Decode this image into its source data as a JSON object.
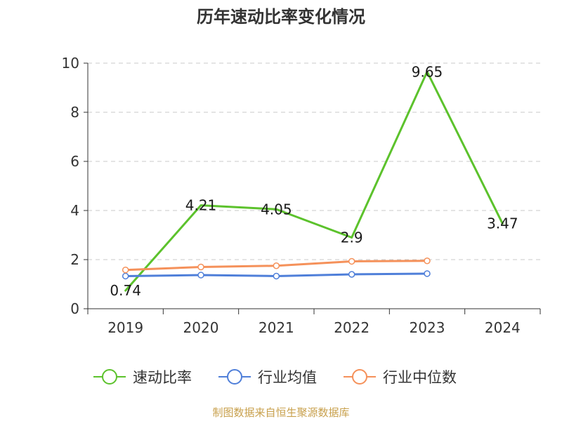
{
  "title": "历年速动比率变化情况",
  "source_note": "制图数据来自恒生聚源数据库",
  "colors": {
    "title": "#333333",
    "axis": "#333333",
    "grid": "#c8c8c8",
    "tick_text": "#333333",
    "source": "#c8a04c"
  },
  "chart_data": {
    "type": "line",
    "title": "历年速动比率变化情况",
    "x": [
      "2019",
      "2020",
      "2021",
      "2022",
      "2023",
      "2024"
    ],
    "ylim": [
      0,
      10
    ],
    "yticks": [
      0,
      2,
      4,
      6,
      8,
      10
    ],
    "grid": true,
    "grid_style": "dashed-horizontal",
    "legend_position": "bottom-center",
    "series": [
      {
        "name": "速动比率",
        "color": "#5cc22c",
        "values": [
          0.74,
          4.21,
          4.05,
          2.9,
          9.65,
          3.47
        ],
        "value_labels": [
          "0.74",
          "4.21",
          "4.05",
          "2.9",
          "9.65",
          "3.47"
        ],
        "markers": false
      },
      {
        "name": "行业均值",
        "color": "#4f7fd9",
        "values": [
          1.33,
          1.37,
          1.33,
          1.4,
          1.43,
          null
        ],
        "markers": true
      },
      {
        "name": "行业中位数",
        "color": "#f5915a",
        "values": [
          1.58,
          1.7,
          1.75,
          1.93,
          1.95,
          null
        ],
        "markers": true
      }
    ]
  }
}
